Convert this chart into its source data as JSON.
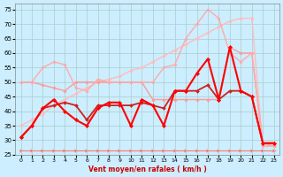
{
  "xlabel": "Vent moyen/en rafales ( km/h )",
  "xlim": [
    -0.5,
    23.5
  ],
  "ylim": [
    25,
    77
  ],
  "yticks": [
    25,
    30,
    35,
    40,
    45,
    50,
    55,
    60,
    65,
    70,
    75
  ],
  "xticks": [
    0,
    1,
    2,
    3,
    4,
    5,
    6,
    7,
    8,
    9,
    10,
    11,
    12,
    13,
    14,
    15,
    16,
    17,
    18,
    19,
    20,
    21,
    22,
    23
  ],
  "background_color": "#cceeff",
  "grid_color": "#aacccc",
  "series": [
    {
      "x": [
        0,
        1,
        2,
        3,
        4,
        5,
        6,
        7,
        8,
        9,
        10,
        11,
        12,
        13,
        14,
        15,
        16,
        17,
        18,
        19,
        20,
        21,
        22,
        23
      ],
      "y": [
        35,
        37,
        39,
        42,
        44,
        46,
        48,
        50,
        51,
        52,
        54,
        55,
        57,
        59,
        61,
        63,
        65,
        67,
        69,
        71,
        72,
        72,
        28,
        28
      ],
      "color": "#ffbbbb",
      "lw": 1.0,
      "marker": "D",
      "ms": 1.8,
      "zorder": 2
    },
    {
      "x": [
        0,
        1,
        2,
        3,
        4,
        5,
        6,
        7,
        8,
        9,
        10,
        11,
        12,
        13,
        14,
        15,
        16,
        17,
        18,
        19,
        20,
        21,
        22,
        23
      ],
      "y": [
        50,
        50,
        55,
        57,
        56,
        48,
        47,
        51,
        50,
        50,
        50,
        50,
        50,
        55,
        56,
        65,
        70,
        75,
        72,
        60,
        57,
        60,
        28,
        28
      ],
      "color": "#ffaaaa",
      "lw": 1.0,
      "marker": "D",
      "ms": 1.8,
      "zorder": 3
    },
    {
      "x": [
        0,
        1,
        2,
        3,
        4,
        5,
        6,
        7,
        8,
        9,
        10,
        11,
        12,
        13,
        14,
        15,
        16,
        17,
        18,
        19,
        20,
        21,
        22,
        23
      ],
      "y": [
        50,
        50,
        49,
        48,
        47,
        50,
        50,
        50,
        50,
        50,
        50,
        50,
        44,
        44,
        44,
        44,
        44,
        44,
        44,
        62,
        60,
        60,
        29,
        28
      ],
      "color": "#ff9999",
      "lw": 1.0,
      "marker": "D",
      "ms": 1.8,
      "zorder": 2
    },
    {
      "x": [
        0,
        1,
        2,
        3,
        4,
        5,
        6,
        7,
        8,
        9,
        10,
        11,
        12,
        13,
        14,
        15,
        16,
        17,
        18,
        19,
        20,
        21,
        22,
        23
      ],
      "y": [
        31,
        35,
        41,
        42,
        43,
        42,
        37,
        42,
        42,
        42,
        42,
        43,
        42,
        41,
        47,
        47,
        47,
        49,
        44,
        47,
        47,
        45,
        29,
        29
      ],
      "color": "#cc2222",
      "lw": 1.3,
      "marker": "D",
      "ms": 2.0,
      "zorder": 4
    },
    {
      "x": [
        0,
        1,
        2,
        3,
        4,
        5,
        6,
        7,
        8,
        9,
        10,
        11,
        12,
        13,
        14,
        15,
        16,
        17,
        18,
        19,
        20,
        21,
        22,
        23
      ],
      "y": [
        31,
        35,
        41,
        44,
        40,
        37,
        35,
        41,
        43,
        43,
        35,
        44,
        42,
        35,
        47,
        47,
        53,
        58,
        44,
        62,
        47,
        45,
        29,
        29
      ],
      "color": "#ff0000",
      "lw": 1.5,
      "marker": "D",
      "ms": 2.2,
      "zorder": 5
    },
    {
      "x": [
        0,
        1,
        2,
        3,
        4,
        5,
        6,
        7,
        8,
        9,
        10,
        11,
        12,
        13,
        14,
        15,
        16,
        17,
        18,
        19,
        20,
        21,
        22,
        23
      ],
      "y": [
        26.5,
        26.5,
        26.5,
        26.5,
        26.5,
        26.5,
        26.5,
        26.5,
        26.5,
        26.5,
        26.5,
        26.5,
        26.5,
        26.5,
        26.5,
        26.5,
        26.5,
        26.5,
        26.5,
        26.5,
        26.5,
        26.5,
        26.5,
        26.5
      ],
      "color": "#ff7777",
      "lw": 0.8,
      "marker": ">",
      "ms": 2.5,
      "zorder": 1
    }
  ]
}
